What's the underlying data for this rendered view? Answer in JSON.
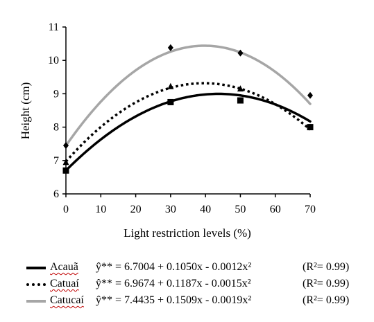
{
  "chart_data": {
    "type": "line",
    "xlabel": "Light restriction levels (%)",
    "ylabel": "Height (cm)",
    "xlim": [
      0,
      70
    ],
    "ylim": [
      6,
      11
    ],
    "xticks": [
      0,
      10,
      20,
      30,
      40,
      50,
      60,
      70
    ],
    "yticks": [
      6,
      7,
      8,
      9,
      10,
      11
    ],
    "grid": false,
    "legend_position": "bottom",
    "series": [
      {
        "name": "Acauã",
        "color": "#000000",
        "line_style": "solid",
        "marker": "square",
        "x": [
          0,
          30,
          50,
          70
        ],
        "y": [
          6.7,
          8.75,
          8.8,
          8.0
        ],
        "fit": {
          "a": 6.7004,
          "b": 0.105,
          "c": -0.0012
        },
        "equation": "ŷ** = 6.7004 + 0.1050x - 0.0012x²",
        "r2": "(R²= 0.99)"
      },
      {
        "name": "Catuaí",
        "color": "#000000",
        "line_style": "dotted",
        "marker": "triangle",
        "x": [
          0,
          30,
          50,
          70
        ],
        "y": [
          6.95,
          9.22,
          9.15,
          8.0
        ],
        "fit": {
          "a": 6.9674,
          "b": 0.1187,
          "c": -0.0015
        },
        "equation": "ŷ** = 6.9674 + 0.1187x - 0.0015x²",
        "r2": "(R²= 0.99)"
      },
      {
        "name": "Catucaí",
        "color": "#a6a6a6",
        "line_style": "solid",
        "marker": "diamond",
        "x": [
          0,
          30,
          50,
          70
        ],
        "y": [
          7.45,
          10.38,
          10.22,
          8.95
        ],
        "fit": {
          "a": 7.4435,
          "b": 0.1509,
          "c": -0.0019
        },
        "equation": "ŷ** = 7.4435 + 0.1509x - 0.0019x²",
        "r2": "(R²= 0.99)"
      }
    ]
  }
}
